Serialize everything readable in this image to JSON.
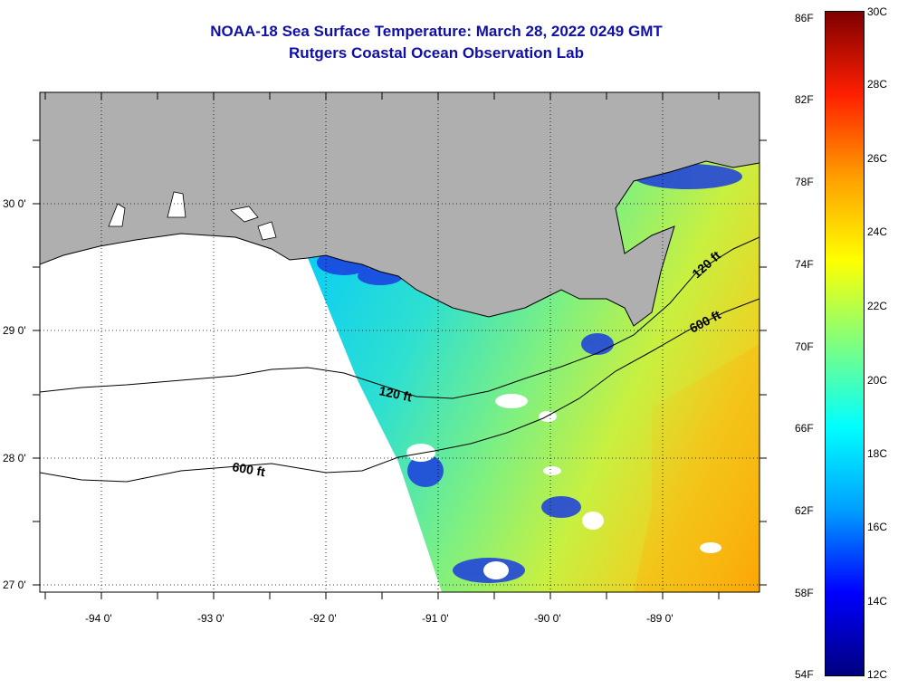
{
  "title": {
    "line1": "NOAA-18 Sea Surface Temperature:  March 28, 2022 0249 GMT",
    "line2": "Rutgers Coastal Ocean Observation Lab"
  },
  "map": {
    "lat_labels": [
      "30 0'",
      "29 0'",
      "28 0'",
      "27 0'"
    ],
    "lon_labels": [
      "-94 0'",
      "-93 0'",
      "-92 0'",
      "-91 0'",
      "-90 0'",
      "-89 0'"
    ],
    "contour_labels": [
      "120 ft",
      "120 ft",
      "600 ft",
      "600 ft"
    ],
    "colors": {
      "land": "#afafaf",
      "no_data": "#ffffff",
      "contour": "#000000",
      "grid": "#000000"
    }
  },
  "colorbar": {
    "fahrenheit_labels": [
      "86F",
      "82F",
      "78F",
      "74F",
      "70F",
      "66F",
      "62F",
      "58F",
      "54F"
    ],
    "celsius_labels": [
      "30C",
      "28C",
      "26C",
      "24C",
      "22C",
      "20C",
      "18C",
      "16C",
      "14C",
      "12C"
    ],
    "colors": [
      "#00007f",
      "#0000ff",
      "#00a0ff",
      "#00ffff",
      "#7fff7f",
      "#ffff00",
      "#ff9f00",
      "#ff1f00",
      "#7f0000"
    ]
  }
}
